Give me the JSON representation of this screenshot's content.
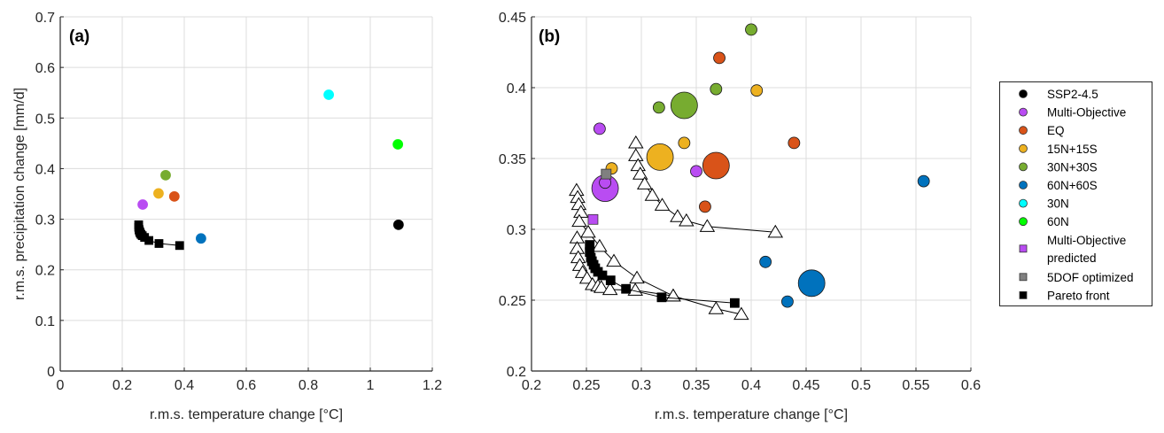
{
  "chart_data": [
    {
      "type": "scatter",
      "panel_label": "(a)",
      "xlabel": "r.m.s. temperature change [°C]",
      "ylabel": "r.m.s. precipitation change [mm/d]",
      "xlim": [
        0,
        1.2
      ],
      "ylim": [
        0,
        0.7
      ],
      "xticks": [
        "0",
        "0.2",
        "0.4",
        "0.6",
        "0.8",
        "1",
        "1.2"
      ],
      "yticks": [
        "0",
        "0.1",
        "0.2",
        "0.3",
        "0.4",
        "0.5",
        "0.6",
        "0.7"
      ],
      "grid": true,
      "series": [
        {
          "name": "SSP2-4.5",
          "marker": "circle",
          "color": "#000000",
          "points": [
            [
              1.091,
              0.289
            ]
          ]
        },
        {
          "name": "Multi-Objective",
          "marker": "circle",
          "color": "#B94CF2",
          "points": [
            [
              0.266,
              0.329
            ]
          ]
        },
        {
          "name": "EQ",
          "marker": "circle",
          "color": "#D95319",
          "points": [
            [
              0.368,
              0.345
            ]
          ]
        },
        {
          "name": "15N+15S",
          "marker": "circle",
          "color": "#EDB120",
          "points": [
            [
              0.317,
              0.351
            ]
          ]
        },
        {
          "name": "30N+30S",
          "marker": "circle",
          "color": "#77AC30",
          "points": [
            [
              0.34,
              0.387
            ]
          ]
        },
        {
          "name": "60N+60S",
          "marker": "circle",
          "color": "#0072BD",
          "points": [
            [
              0.454,
              0.262
            ]
          ]
        },
        {
          "name": "30N",
          "marker": "circle",
          "color": "#00FFFF",
          "points": [
            [
              0.866,
              0.546
            ]
          ]
        },
        {
          "name": "60N",
          "marker": "circle",
          "color": "#00FF00",
          "points": [
            [
              1.089,
              0.448
            ]
          ]
        },
        {
          "name": "Pareto front",
          "marker": "square",
          "color": "#000000",
          "line": true,
          "points": [
            [
              0.253,
              0.289
            ],
            [
              0.253,
              0.284
            ],
            [
              0.254,
              0.28
            ],
            [
              0.255,
              0.2775
            ],
            [
              0.2565,
              0.275
            ],
            [
              0.258,
              0.2725
            ],
            [
              0.2605,
              0.27
            ],
            [
              0.2645,
              0.2675
            ],
            [
              0.272,
              0.264
            ],
            [
              0.286,
              0.258
            ],
            [
              0.3185,
              0.252
            ],
            [
              0.385,
              0.248
            ]
          ]
        }
      ]
    },
    {
      "type": "scatter",
      "panel_label": "(b)",
      "xlabel": "r.m.s. temperature change [°C]",
      "ylabel": "",
      "xlim": [
        0.2,
        0.6
      ],
      "ylim": [
        0.2,
        0.45
      ],
      "xticks": [
        "0.2",
        "0.25",
        "0.3",
        "0.35",
        "0.4",
        "0.45",
        "0.5",
        "0.55",
        "0.6"
      ],
      "yticks": [
        "0.2",
        "0.25",
        "0.3",
        "0.35",
        "0.4",
        "0.45"
      ],
      "grid": true,
      "series": [
        {
          "name": "Multi-Objective",
          "marker": "circle",
          "color": "#B94CF2",
          "points": [
            [
              0.262,
              0.371
            ],
            [
              0.35,
              0.341
            ]
          ],
          "large": [
            [
              0.267,
              0.329
            ]
          ],
          "small_overlay": [
            [
              0.267,
              0.333
            ]
          ]
        },
        {
          "name": "EQ",
          "marker": "circle",
          "color": "#D95319",
          "points": [
            [
              0.371,
              0.421
            ],
            [
              0.439,
              0.361
            ],
            [
              0.358,
              0.316
            ]
          ],
          "large": [
            [
              0.368,
              0.345
            ]
          ]
        },
        {
          "name": "15N+15S",
          "marker": "circle",
          "color": "#EDB120",
          "points": [
            [
              0.405,
              0.398
            ],
            [
              0.339,
              0.361
            ],
            [
              0.273,
              0.343
            ]
          ],
          "large": [
            [
              0.317,
              0.351
            ]
          ]
        },
        {
          "name": "30N+30S",
          "marker": "circle",
          "color": "#77AC30",
          "points": [
            [
              0.4,
              0.441
            ],
            [
              0.368,
              0.399
            ],
            [
              0.316,
              0.386
            ]
          ],
          "large": [
            [
              0.339,
              0.3875
            ]
          ]
        },
        {
          "name": "60N+60S",
          "marker": "circle",
          "color": "#0072BD",
          "points": [
            [
              0.557,
              0.334
            ],
            [
              0.413,
              0.277
            ],
            [
              0.433,
              0.249
            ]
          ],
          "large": [
            [
              0.455,
              0.262
            ]
          ]
        },
        {
          "name": "Multi-Objective predicted",
          "marker": "square",
          "color": "#B94CF2",
          "points": [
            [
              0.256,
              0.307
            ]
          ]
        },
        {
          "name": "5DOF optimized",
          "marker": "square",
          "color": "#808080",
          "points": [
            [
              0.268,
              0.339
            ]
          ]
        },
        {
          "name": "Pareto front",
          "marker": "square",
          "color": "#000000",
          "line": true,
          "points": [
            [
              0.253,
              0.289
            ],
            [
              0.253,
              0.284
            ],
            [
              0.254,
              0.28
            ],
            [
              0.255,
              0.2775
            ],
            [
              0.2565,
              0.275
            ],
            [
              0.258,
              0.2725
            ],
            [
              0.2605,
              0.27
            ],
            [
              0.2645,
              0.2675
            ],
            [
              0.272,
              0.264
            ],
            [
              0.286,
              0.258
            ],
            [
              0.3185,
              0.252
            ],
            [
              0.385,
              0.248
            ]
          ]
        },
        {
          "name": "triangle-front-1",
          "marker": "triangle",
          "color": "#ffffff",
          "line": true,
          "points": [
            [
              0.295,
              0.361
            ],
            [
              0.295,
              0.352
            ],
            [
              0.297,
              0.345
            ],
            [
              0.299,
              0.339
            ],
            [
              0.303,
              0.332
            ],
            [
              0.31,
              0.324
            ],
            [
              0.319,
              0.317
            ],
            [
              0.333,
              0.309
            ],
            [
              0.341,
              0.306
            ],
            [
              0.36,
              0.302
            ],
            [
              0.422,
              0.298
            ]
          ]
        },
        {
          "name": "triangle-front-2",
          "marker": "triangle",
          "color": "#ffffff",
          "line": true,
          "points": [
            [
              0.241,
              0.3275
            ],
            [
              0.242,
              0.3225
            ],
            [
              0.243,
              0.3175
            ],
            [
              0.245,
              0.312
            ],
            [
              0.2435,
              0.3056
            ],
            [
              0.2516,
              0.298
            ],
            [
              0.262,
              0.288
            ],
            [
              0.275,
              0.2775
            ],
            [
              0.296,
              0.2656
            ],
            [
              0.329,
              0.253
            ],
            [
              0.368,
              0.244
            ],
            [
              0.391,
              0.24
            ]
          ]
        },
        {
          "name": "triangle-front-3",
          "marker": "triangle",
          "color": "#ffffff",
          "line": true,
          "points": [
            [
              0.2415,
              0.294
            ],
            [
              0.2415,
              0.2865
            ],
            [
              0.2425,
              0.28
            ],
            [
              0.244,
              0.2745
            ],
            [
              0.2465,
              0.2695
            ],
            [
              0.2505,
              0.2655
            ],
            [
              0.2555,
              0.261
            ],
            [
              0.2605,
              0.26
            ],
            [
              0.2635,
              0.259
            ],
            [
              0.2715,
              0.2575
            ],
            [
              0.2945,
              0.257
            ],
            [
              0.329,
              0.253
            ]
          ]
        }
      ]
    }
  ],
  "legend": {
    "placement": "right",
    "items": [
      {
        "label": "SSP2-4.5",
        "marker": "circle",
        "color": "#000000"
      },
      {
        "label": "Multi-Objective",
        "marker": "circle",
        "color": "#B94CF2"
      },
      {
        "label": "EQ",
        "marker": "circle",
        "color": "#D95319"
      },
      {
        "label": "15N+15S",
        "marker": "circle",
        "color": "#EDB120"
      },
      {
        "label": "30N+30S",
        "marker": "circle",
        "color": "#77AC30"
      },
      {
        "label": "60N+60S",
        "marker": "circle",
        "color": "#0072BD"
      },
      {
        "label": "30N",
        "marker": "circle",
        "color": "#00FFFF"
      },
      {
        "label": "60N",
        "marker": "circle",
        "color": "#00FF00"
      },
      {
        "label": "Multi-Objective",
        "label2": "predicted",
        "marker": "square",
        "color": "#B94CF2"
      },
      {
        "label": "5DOF optimized",
        "marker": "square",
        "color": "#808080"
      },
      {
        "label": "Pareto front",
        "marker": "square",
        "color": "#000000"
      }
    ]
  }
}
